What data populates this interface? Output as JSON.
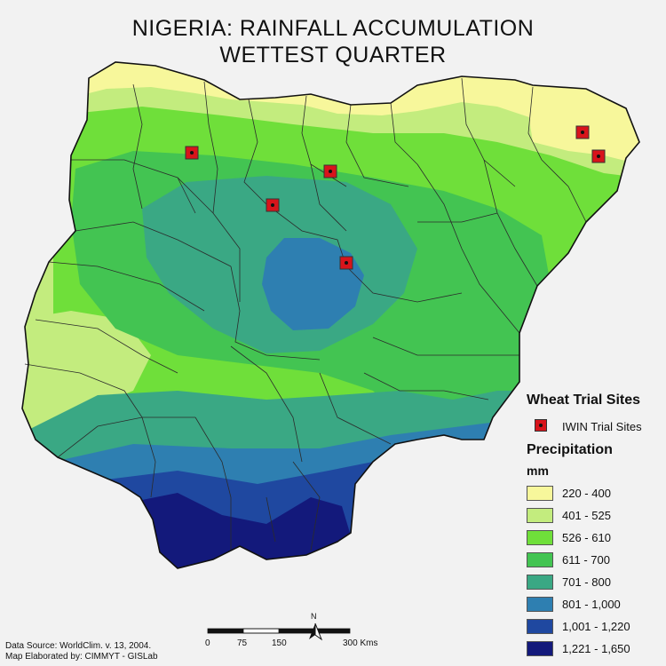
{
  "title": {
    "line1": "NIGERIA:  RAINFALL ACCUMULATION",
    "line2": "WETTEST QUARTER"
  },
  "legend": {
    "sites_heading": "Wheat Trial Sites",
    "sites_label": "IWIN Trial Sites",
    "precip_heading": "Precipitation",
    "unit": "mm",
    "classes": [
      {
        "label": "220 - 400",
        "color": "#f7f79b"
      },
      {
        "label": "401 - 525",
        "color": "#c3ec7e"
      },
      {
        "label": "526 - 610",
        "color": "#6fdf3a"
      },
      {
        "label": "611 - 700",
        "color": "#43c452"
      },
      {
        "label": "701 - 800",
        "color": "#3aa884"
      },
      {
        "label": "801 - 1,000",
        "color": "#2e7fb1"
      },
      {
        "label": "1,001 - 1,220",
        "color": "#1f48a0"
      },
      {
        "label": "1,221 - 1,650",
        "color": "#13197b"
      }
    ]
  },
  "trial_site_color": "#d8141b",
  "scale_bar": {
    "ticks": [
      "0",
      "75",
      "150",
      "300 Kms"
    ]
  },
  "north_arrow": "N",
  "footer": {
    "source": "Data Source: WorldClim. v. 13, 2004.",
    "credit": "Map Elaborated by: CIMMYT - GISLab"
  }
}
